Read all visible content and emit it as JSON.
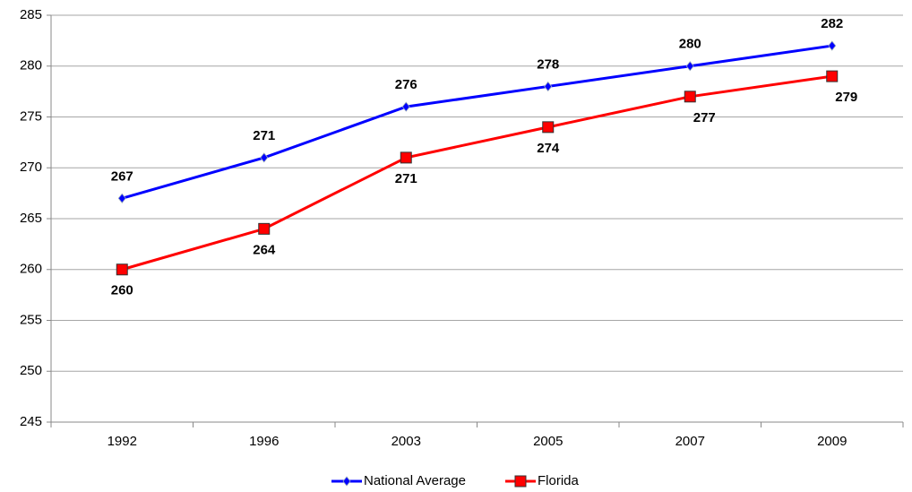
{
  "chart_data": {
    "type": "line",
    "categories": [
      "1992",
      "1996",
      "2003",
      "2005",
      "2007",
      "2009"
    ],
    "series": [
      {
        "name": "National Average",
        "color": "#0000ff",
        "marker": "diamond",
        "values": [
          267,
          271,
          276,
          278,
          280,
          282
        ]
      },
      {
        "name": "Florida",
        "color": "#ff0000",
        "marker": "square",
        "values": [
          260,
          264,
          271,
          274,
          277,
          279
        ]
      }
    ],
    "ylim": [
      245,
      285
    ],
    "yticks": [
      245,
      250,
      255,
      260,
      265,
      270,
      275,
      280,
      285
    ],
    "grid": true,
    "legend": "bottom"
  }
}
